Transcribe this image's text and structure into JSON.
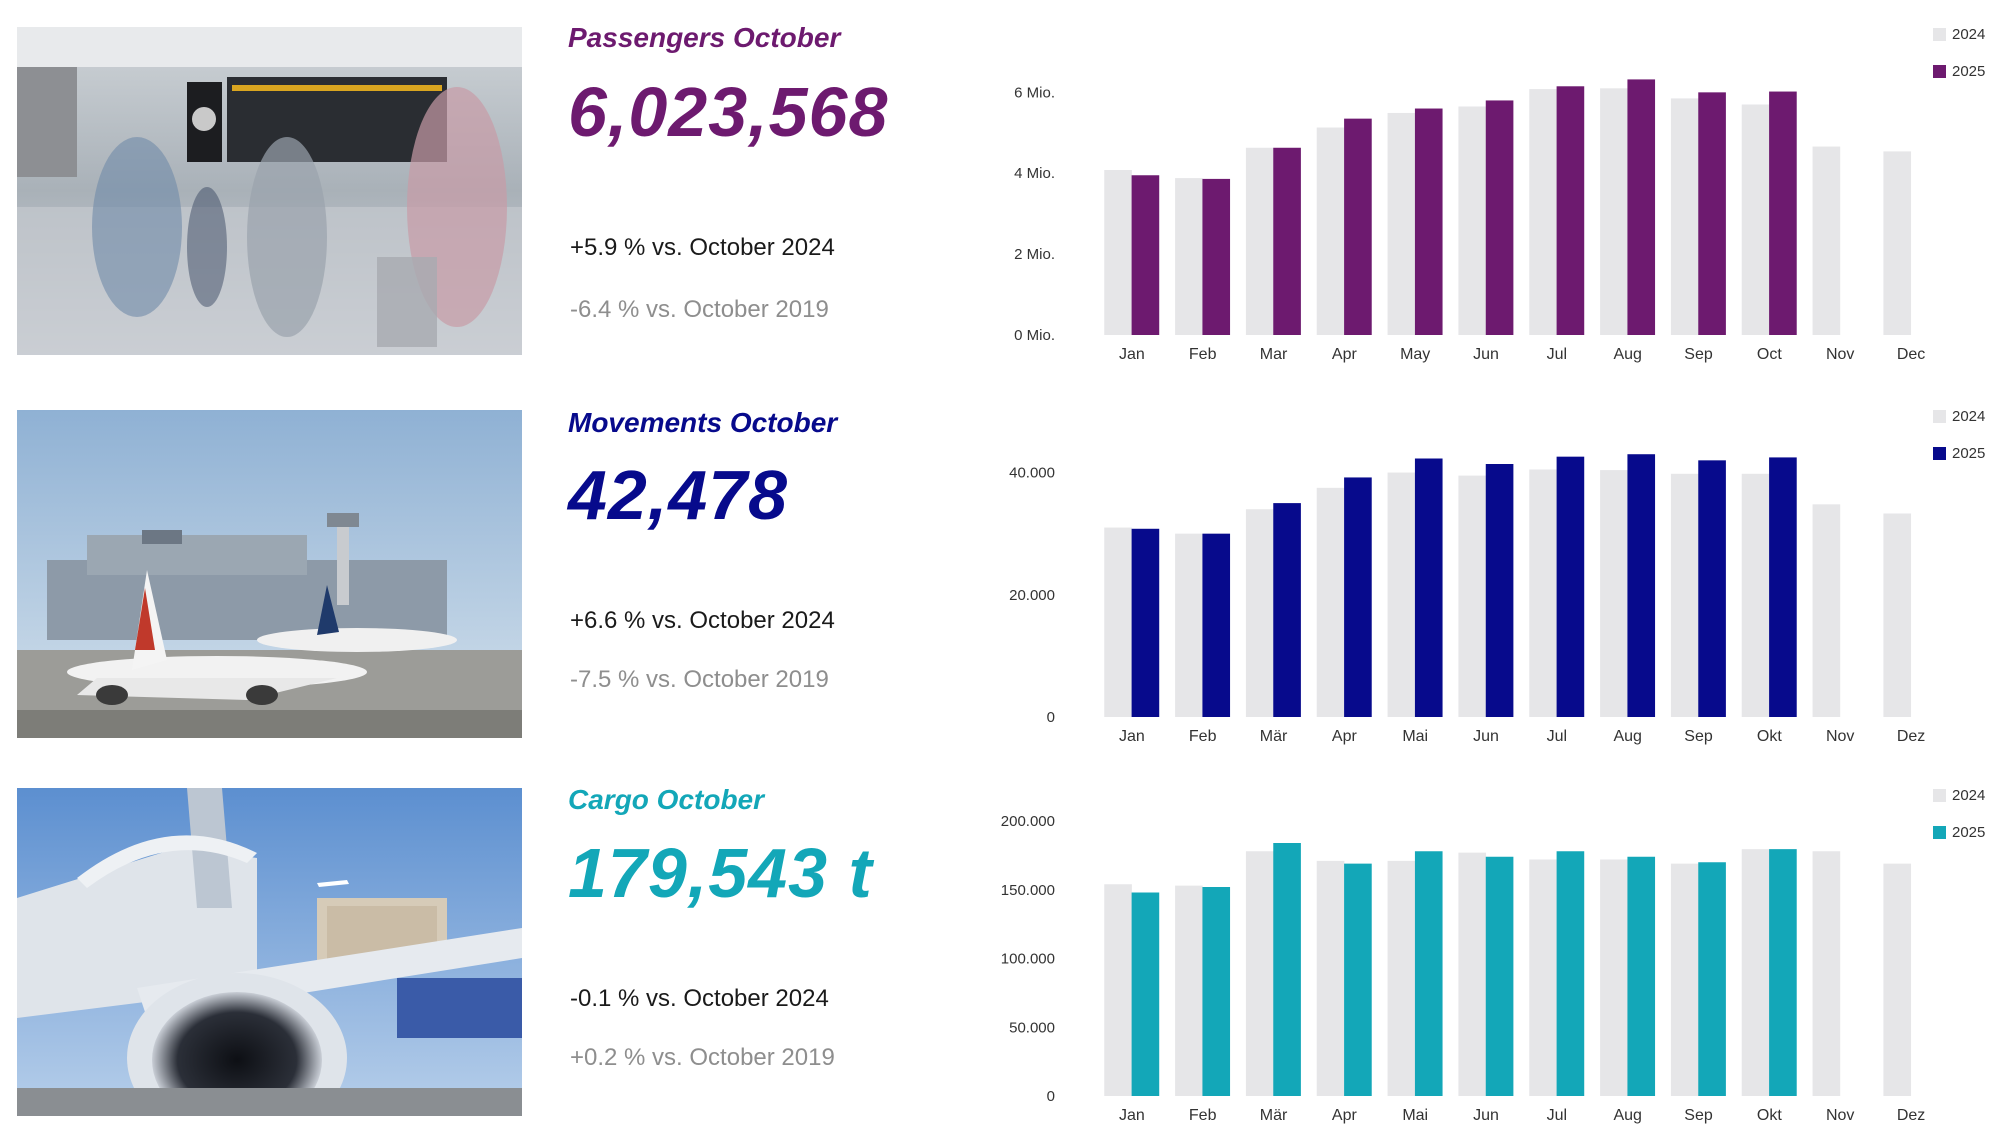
{
  "panels": [
    {
      "id": "passengers",
      "title": "Passengers October",
      "value": "6,023,568",
      "cmp_prev": "+5.9 % vs. October 2024",
      "cmp_2019": "-6.4 % vs. October 2019",
      "accent": "#6d1a6f",
      "photo": "airport-terminal-photo",
      "chart_data": {
        "type": "bar",
        "categories": [
          "Jan",
          "Feb",
          "Mar",
          "Apr",
          "May",
          "Jun",
          "Jul",
          "Aug",
          "Sep",
          "Oct",
          "Nov",
          "Dec"
        ],
        "series": [
          {
            "name": "2024",
            "color": "#e6e6e8",
            "values": [
              4.08,
              3.88,
              4.63,
              5.13,
              5.49,
              5.65,
              6.08,
              6.1,
              5.85,
              5.7,
              4.66,
              4.54
            ]
          },
          {
            "name": "2025",
            "color": "#6d1a6f",
            "values": [
              3.95,
              3.86,
              4.63,
              5.35,
              5.6,
              5.8,
              6.15,
              6.32,
              6.0,
              6.02,
              null,
              null
            ]
          }
        ],
        "ylim": [
          0,
          6.8
        ],
        "yticks": [
          0,
          2,
          4,
          6
        ],
        "ytick_labels": [
          "0 Mio.",
          "2 Mio.",
          "4 Mio.",
          "6 Mio."
        ]
      }
    },
    {
      "id": "movements",
      "title": "Movements October",
      "value": "42,478",
      "cmp_prev": "+6.6 % vs. October 2024",
      "cmp_2019": "-7.5 % vs. October 2019",
      "accent": "#070a8c",
      "photo": "airport-apron-photo",
      "chart_data": {
        "type": "bar",
        "categories": [
          "Jan",
          "Feb",
          "Mär",
          "Apr",
          "Mai",
          "Jun",
          "Jul",
          "Aug",
          "Sep",
          "Okt",
          "Nov",
          "Dez"
        ],
        "series": [
          {
            "name": "2024",
            "color": "#e6e6e8",
            "values": [
              31000,
              30000,
              34000,
              37500,
              40000,
              39500,
              40500,
              40400,
              39800,
              39800,
              34800,
              33300
            ]
          },
          {
            "name": "2025",
            "color": "#070a8c",
            "values": [
              30800,
              30000,
              35000,
              39200,
              42300,
              41400,
              42600,
              43000,
              42000,
              42478,
              null,
              null
            ]
          }
        ],
        "ylim": [
          0,
          45000
        ],
        "yticks": [
          0,
          20000,
          40000
        ],
        "ytick_labels": [
          "0",
          "20.000",
          "40.000"
        ]
      }
    },
    {
      "id": "cargo",
      "title": "Cargo October",
      "value": "179,543 t",
      "cmp_prev": "-0.1 % vs. October 2024",
      "cmp_2019": "+0.2 % vs. October 2019",
      "accent": "#13a7b8",
      "photo": "cargo-aircraft-photo",
      "chart_data": {
        "type": "bar",
        "categories": [
          "Jan",
          "Feb",
          "Mär",
          "Apr",
          "Mai",
          "Jun",
          "Jul",
          "Aug",
          "Sep",
          "Okt",
          "Nov",
          "Dez"
        ],
        "series": [
          {
            "name": "2024",
            "color": "#e6e6e8",
            "values": [
              154000,
              153000,
              178000,
              171000,
              171000,
              177000,
              172000,
              172000,
              169000,
              179500,
              178000,
              169000
            ]
          },
          {
            "name": "2025",
            "color": "#13a7b8",
            "values": [
              148000,
              152000,
              184000,
              169000,
              178000,
              174000,
              178000,
              174000,
              170000,
              179543,
              null,
              null
            ]
          }
        ],
        "ylim": [
          0,
          200000
        ],
        "yticks": [
          0,
          50000,
          100000,
          150000,
          200000
        ],
        "ytick_labels": [
          "0",
          "50.000",
          "100.000",
          "150.000",
          "200.000"
        ]
      }
    }
  ]
}
